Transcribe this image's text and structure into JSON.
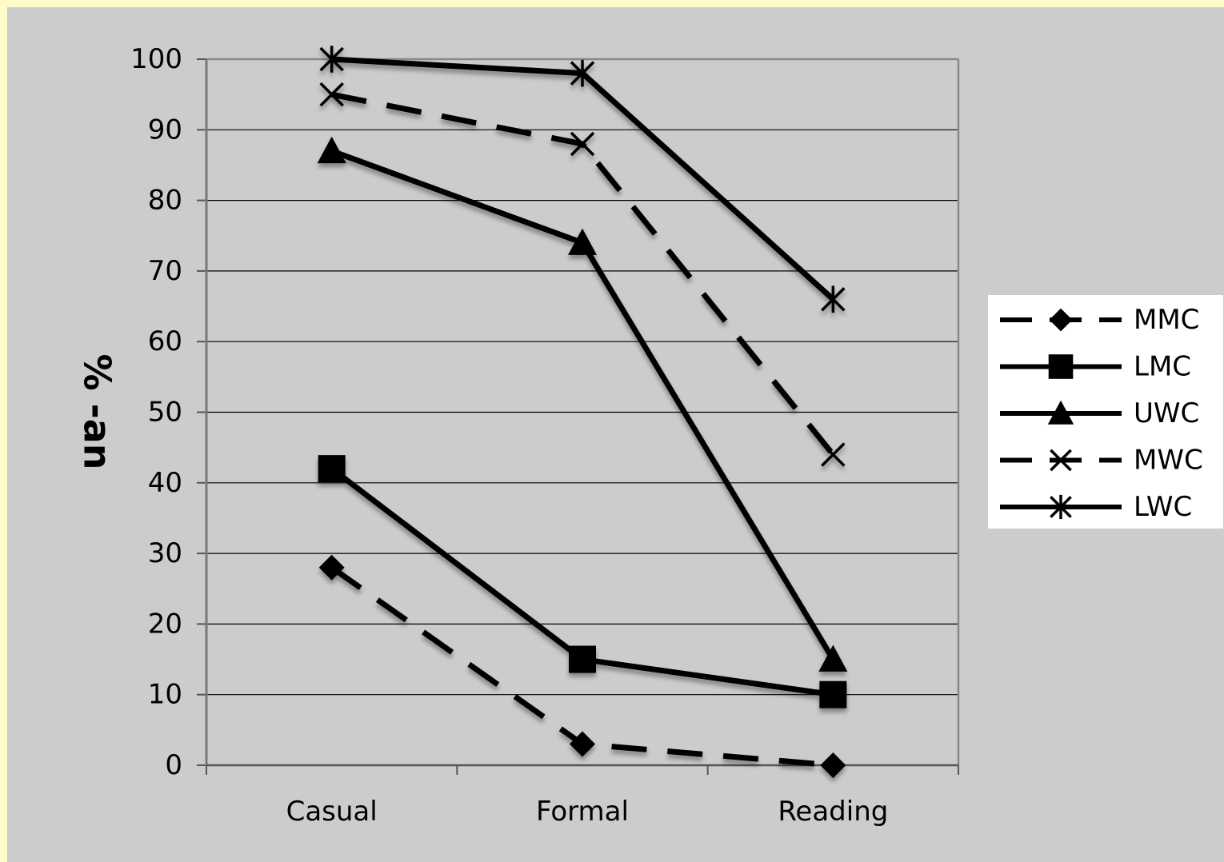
{
  "chart_data": {
    "type": "line",
    "categories": [
      "Casual",
      "Formal",
      "Reading"
    ],
    "ylabel": "% -an",
    "ylim": [
      0,
      100
    ],
    "yticks": [
      0,
      10,
      20,
      30,
      40,
      50,
      60,
      70,
      80,
      90,
      100
    ],
    "grid": "horizontal",
    "legend": "right",
    "series": [
      {
        "name": "MMC",
        "values": [
          28,
          3,
          0
        ],
        "marker": "diamond",
        "dash": true
      },
      {
        "name": "LMC",
        "values": [
          42,
          15,
          10
        ],
        "marker": "square",
        "dash": false
      },
      {
        "name": "UWC",
        "values": [
          87,
          74,
          15
        ],
        "marker": "triangle",
        "dash": false
      },
      {
        "name": "MWC",
        "values": [
          95,
          88,
          44
        ],
        "marker": "x",
        "dash": true
      },
      {
        "name": "LWC",
        "values": [
          100,
          98,
          66
        ],
        "marker": "star",
        "dash": false
      }
    ],
    "colors": {
      "line": "#000000",
      "plot_bg": "#cccccc",
      "page_bg": "#fdfbc8",
      "legend_bg": "#ffffff"
    }
  }
}
